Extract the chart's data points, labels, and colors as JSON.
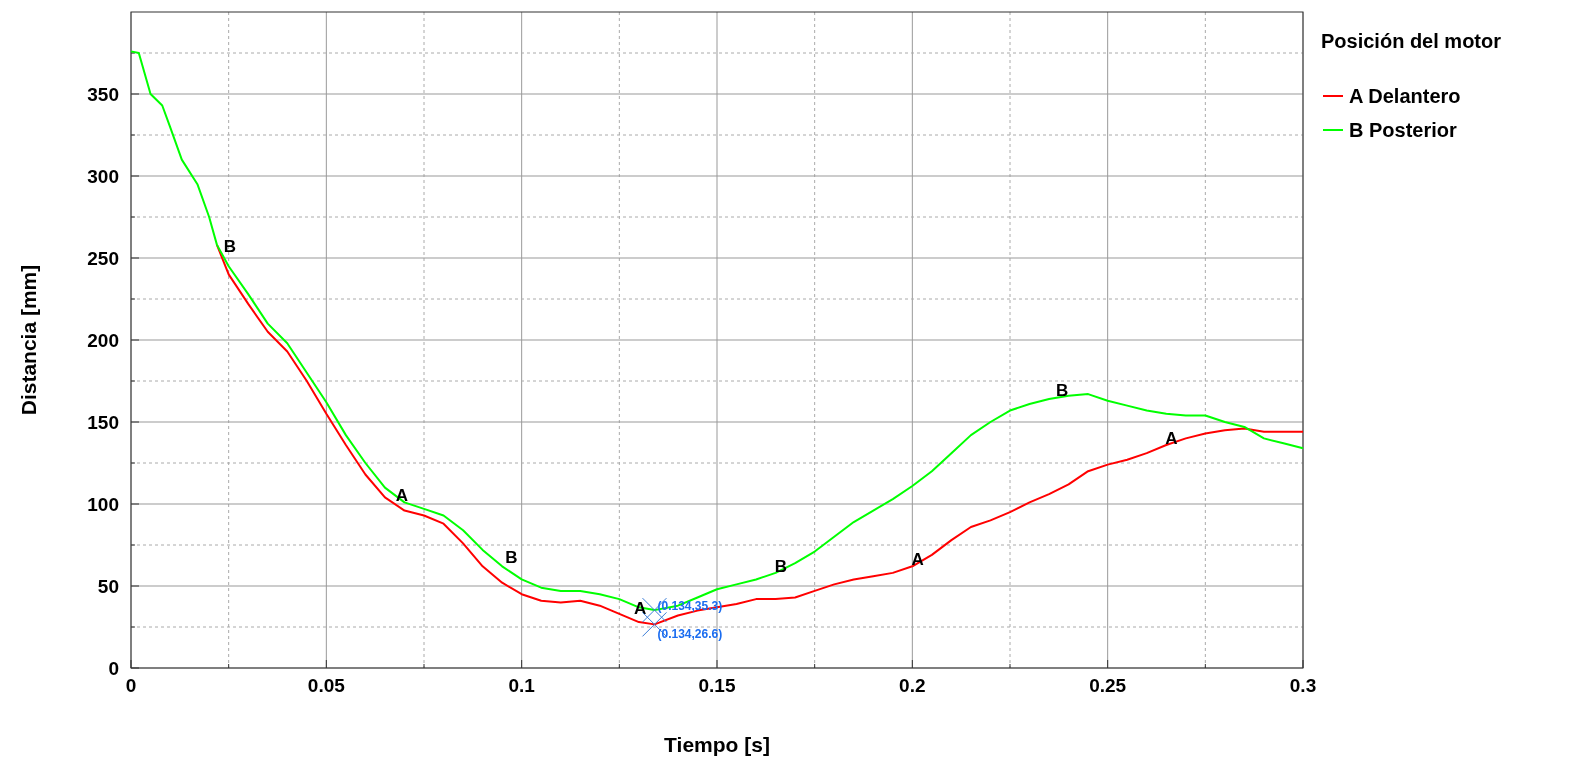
{
  "chart_data": {
    "type": "line",
    "xlabel": "Tiempo [s]",
    "ylabel": "Distancia [mm]",
    "legend_title": "Posición del motor",
    "x": [
      0,
      0.002,
      0.005,
      0.008,
      0.01,
      0.013,
      0.017,
      0.02,
      0.022,
      0.025,
      0.03,
      0.035,
      0.04,
      0.045,
      0.05,
      0.055,
      0.06,
      0.065,
      0.07,
      0.075,
      0.08,
      0.085,
      0.09,
      0.095,
      0.1,
      0.105,
      0.11,
      0.115,
      0.12,
      0.125,
      0.13,
      0.134,
      0.14,
      0.145,
      0.15,
      0.155,
      0.16,
      0.165,
      0.17,
      0.175,
      0.18,
      0.185,
      0.19,
      0.195,
      0.2,
      0.205,
      0.21,
      0.215,
      0.22,
      0.225,
      0.23,
      0.235,
      0.24,
      0.245,
      0.25,
      0.255,
      0.26,
      0.265,
      0.27,
      0.275,
      0.28,
      0.285,
      0.29,
      0.295,
      0.3
    ],
    "series": [
      {
        "name": "A Delantero",
        "color": "#ff0000",
        "values": [
          null,
          null,
          null,
          null,
          null,
          null,
          null,
          null,
          258,
          240,
          222,
          205,
          193,
          175,
          155,
          136,
          118,
          104,
          96,
          93,
          88,
          76,
          62,
          52,
          45,
          41,
          40,
          41,
          38,
          33,
          28,
          26.6,
          32,
          35,
          37,
          39,
          42,
          42,
          43,
          47,
          51,
          54,
          56,
          58,
          62,
          69,
          78,
          86,
          90,
          95,
          101,
          106,
          112,
          120,
          124,
          127,
          131,
          136,
          140,
          143,
          145,
          146,
          144,
          144,
          144
        ]
      },
      {
        "name": "B Posterior",
        "color": "#00ff00",
        "values": [
          376,
          375,
          350,
          343,
          330,
          310,
          295,
          275,
          258,
          245,
          228,
          210,
          198,
          180,
          162,
          142,
          125,
          110,
          101,
          97,
          93,
          84,
          72,
          62,
          54,
          49,
          47,
          47,
          45,
          42,
          37,
          35.3,
          38,
          43,
          48,
          51,
          54,
          58,
          64,
          71,
          80,
          89,
          96,
          103,
          111,
          120,
          131,
          142,
          150,
          157,
          161,
          164,
          166,
          167,
          163,
          160,
          157,
          155,
          154,
          154,
          150,
          147,
          140,
          137,
          134
        ]
      }
    ],
    "xlim": [
      0,
      0.3
    ],
    "ylim": [
      0,
      400
    ],
    "xticks": [
      0,
      {
        "value": 0.025,
        "label": null
      },
      0.05,
      {
        "value": 0.075,
        "label": null
      },
      0.1,
      {
        "value": 0.125,
        "label": null
      },
      0.15,
      {
        "value": 0.175,
        "label": null
      },
      0.2,
      {
        "value": 0.225,
        "label": null
      },
      0.25,
      {
        "value": 0.275,
        "label": null
      },
      0.3
    ],
    "yticks": [
      0,
      {
        "value": 25,
        "label": null
      },
      50,
      {
        "value": 75,
        "label": null
      },
      100,
      {
        "value": 125,
        "label": null
      },
      150,
      {
        "value": 175,
        "label": null
      },
      200,
      {
        "value": 225,
        "label": null
      },
      250,
      {
        "value": 275,
        "label": null
      },
      300,
      {
        "value": 325,
        "label": null
      },
      350,
      {
        "value": 375,
        "label": null
      }
    ],
    "grid": true,
    "legend": "right",
    "line_style": "solid",
    "annotations": [
      {
        "text": "B",
        "x": 0.023,
        "y": 252
      },
      {
        "text": "A",
        "x": 0.067,
        "y": 100
      },
      {
        "text": "B",
        "x": 0.095,
        "y": 62
      },
      {
        "text": "A",
        "x": 0.128,
        "y": 31
      },
      {
        "text": "B",
        "x": 0.164,
        "y": 57
      },
      {
        "text": "A",
        "x": 0.199,
        "y": 61
      },
      {
        "text": "B",
        "x": 0.236,
        "y": 164
      },
      {
        "text": "A",
        "x": 0.264,
        "y": 135
      },
      {
        "text": "(0.134,35.3)",
        "x": 0.134,
        "y": 35.3
      },
      {
        "text": "(0.134,26.6)",
        "x": 0.134,
        "y": 26.6
      }
    ]
  }
}
